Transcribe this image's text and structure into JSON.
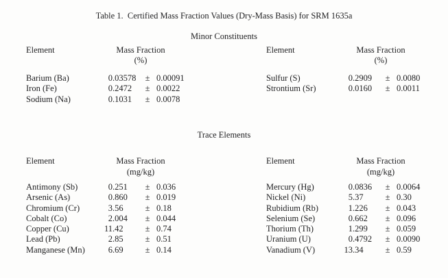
{
  "document": {
    "title": "Table 1.  Certified Mass Fraction Values (Dry-Mass Basis) for SRM 1635a"
  },
  "headers": {
    "element": "Element",
    "mass_fraction": "Mass Fraction"
  },
  "pm": "±",
  "text_color": "#1e1e20",
  "background_color": "#fdfdfc",
  "sections": [
    {
      "heading": "Minor Constituents",
      "unit": "(%)",
      "columns": [
        {
          "rows": [
            {
              "element": "Barium (Ba)",
              "value": "0.03578",
              "uncertainty": "0.00091"
            },
            {
              "element": "Iron (Fe)",
              "value": "0.2472",
              "uncertainty": "0.0022"
            },
            {
              "element": "Sodium (Na)",
              "value": "0.1031",
              "uncertainty": "0.0078"
            }
          ]
        },
        {
          "rows": [
            {
              "element": "Sulfur (S)",
              "value": "0.2909",
              "uncertainty": "0.0080"
            },
            {
              "element": "Strontium (Sr)",
              "value": "0.0160",
              "uncertainty": "0.0011"
            }
          ]
        }
      ]
    },
    {
      "heading": "Trace Elements",
      "unit": "(mg/kg)",
      "columns": [
        {
          "rows": [
            {
              "element": "Antimony (Sb)",
              "value": "0.251",
              "uncertainty": "0.036"
            },
            {
              "element": "Arsenic (As)",
              "value": "0.860",
              "uncertainty": "0.019"
            },
            {
              "element": "Chromium (Cr)",
              "value": "3.56",
              "uncertainty": "0.18"
            },
            {
              "element": "Cobalt (Co)",
              "value": "2.004",
              "uncertainty": "0.044"
            },
            {
              "element": "Copper (Cu)",
              "value": "11.42",
              "uncertainty": "0.74"
            },
            {
              "element": "Lead (Pb)",
              "value": "2.85",
              "uncertainty": "0.51"
            },
            {
              "element": "Manganese (Mn)",
              "value": "6.69",
              "uncertainty": "0.14"
            }
          ]
        },
        {
          "rows": [
            {
              "element": "Mercury (Hg)",
              "value": "0.0836",
              "uncertainty": "0.0064"
            },
            {
              "element": "Nickel (Ni)",
              "value": "5.37",
              "uncertainty": "0.30"
            },
            {
              "element": "Rubidium (Rb)",
              "value": "1.226",
              "uncertainty": "0.043"
            },
            {
              "element": "Selenium (Se)",
              "value": "0.662",
              "uncertainty": "0.096"
            },
            {
              "element": "Thorium (Th)",
              "value": "1.299",
              "uncertainty": "0.059"
            },
            {
              "element": "Uranium (U)",
              "value": "0.4792",
              "uncertainty": "0.0090"
            },
            {
              "element": "Vanadium (V)",
              "value": "13.34",
              "uncertainty": "0.59"
            }
          ]
        }
      ]
    }
  ]
}
